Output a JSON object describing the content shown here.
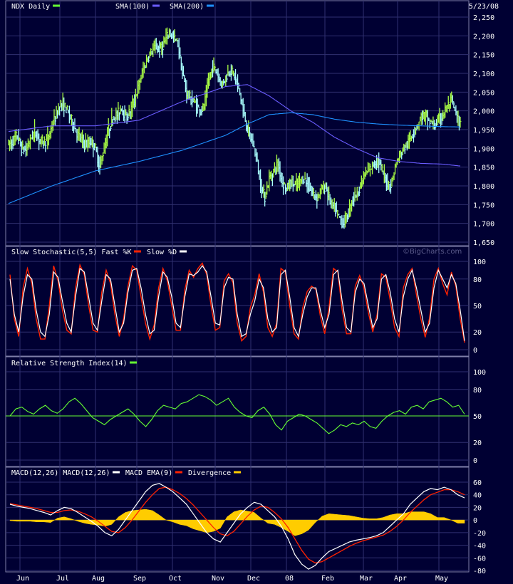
{
  "chart_data": [
    {
      "type": "candlestick",
      "title": "NDX Daily",
      "date": "5/23/08",
      "legend": [
        {
          "name": "NDX Daily",
          "color": "#66ff33"
        },
        {
          "name": "SMA(100)",
          "color": "#6a5cff"
        },
        {
          "name": "SMA(200)",
          "color": "#1e90ff"
        }
      ],
      "ylim": [
        1650,
        2250
      ],
      "yticks": [
        "2,250",
        "2,200",
        "2,150",
        "2,100",
        "2,050",
        "2,000",
        "1,950",
        "1,900",
        "1,850",
        "1,800",
        "1,750",
        "1,700",
        "1,650"
      ],
      "ytick_values": [
        2250,
        2200,
        2150,
        2100,
        2050,
        2000,
        1950,
        1900,
        1850,
        1800,
        1750,
        1700,
        1650
      ],
      "price_keypoints": [
        [
          0,
          1910
        ],
        [
          4,
          1920
        ],
        [
          8,
          1935
        ],
        [
          12,
          1900
        ],
        [
          16,
          1895
        ],
        [
          20,
          1925
        ],
        [
          24,
          1945
        ],
        [
          28,
          1925
        ],
        [
          32,
          1915
        ],
        [
          36,
          1925
        ],
        [
          40,
          1960
        ],
        [
          44,
          1990
        ],
        [
          48,
          2020
        ],
        [
          52,
          2010
        ],
        [
          56,
          1990
        ],
        [
          60,
          1960
        ],
        [
          64,
          1935
        ],
        [
          68,
          1920
        ],
        [
          72,
          1910
        ],
        [
          76,
          1920
        ],
        [
          80,
          1900
        ],
        [
          84,
          1850
        ],
        [
          88,
          1900
        ],
        [
          92,
          1950
        ],
        [
          96,
          1980
        ],
        [
          100,
          1990
        ],
        [
          104,
          2010
        ],
        [
          108,
          1980
        ],
        [
          112,
          2000
        ],
        [
          116,
          2030
        ],
        [
          120,
          2070
        ],
        [
          124,
          2110
        ],
        [
          128,
          2140
        ],
        [
          132,
          2160
        ],
        [
          136,
          2170
        ],
        [
          140,
          2165
        ],
        [
          144,
          2185
        ],
        [
          148,
          2210
        ],
        [
          152,
          2195
        ],
        [
          156,
          2180
        ],
        [
          160,
          2100
        ],
        [
          164,
          2050
        ],
        [
          168,
          2030
        ],
        [
          172,
          2020
        ],
        [
          176,
          2000
        ],
        [
          180,
          2010
        ],
        [
          184,
          2080
        ],
        [
          188,
          2120
        ],
        [
          192,
          2100
        ],
        [
          196,
          2070
        ],
        [
          200,
          2090
        ],
        [
          204,
          2110
        ],
        [
          208,
          2095
        ],
        [
          212,
          2060
        ],
        [
          216,
          2000
        ],
        [
          220,
          1950
        ],
        [
          224,
          1920
        ],
        [
          228,
          1880
        ],
        [
          232,
          1800
        ],
        [
          236,
          1770
        ],
        [
          240,
          1820
        ],
        [
          244,
          1840
        ],
        [
          248,
          1860
        ],
        [
          252,
          1810
        ],
        [
          256,
          1790
        ],
        [
          260,
          1810
        ],
        [
          264,
          1800
        ],
        [
          268,
          1810
        ],
        [
          272,
          1820
        ],
        [
          276,
          1800
        ],
        [
          280,
          1780
        ],
        [
          284,
          1770
        ],
        [
          288,
          1790
        ],
        [
          292,
          1800
        ],
        [
          296,
          1760
        ],
        [
          300,
          1740
        ],
        [
          304,
          1720
        ],
        [
          308,
          1700
        ],
        [
          312,
          1720
        ],
        [
          316,
          1760
        ],
        [
          320,
          1780
        ],
        [
          324,
          1800
        ],
        [
          328,
          1830
        ],
        [
          332,
          1840
        ],
        [
          336,
          1860
        ],
        [
          340,
          1870
        ],
        [
          344,
          1840
        ],
        [
          348,
          1810
        ],
        [
          352,
          1800
        ],
        [
          356,
          1850
        ],
        [
          360,
          1880
        ],
        [
          364,
          1900
        ],
        [
          368,
          1915
        ],
        [
          372,
          1940
        ],
        [
          376,
          1960
        ],
        [
          380,
          1985
        ],
        [
          384,
          1990
        ],
        [
          388,
          1970
        ],
        [
          392,
          1960
        ],
        [
          396,
          1975
        ],
        [
          400,
          1990
        ],
        [
          404,
          2010
        ],
        [
          408,
          2030
        ],
        [
          412,
          1990
        ],
        [
          416,
          1960
        ]
      ],
      "sma100_keypoints": [
        [
          0,
          1945
        ],
        [
          40,
          1960
        ],
        [
          80,
          1960
        ],
        [
          120,
          1975
        ],
        [
          160,
          2025
        ],
        [
          200,
          2065
        ],
        [
          220,
          2070
        ],
        [
          240,
          2040
        ],
        [
          260,
          2000
        ],
        [
          280,
          1970
        ],
        [
          300,
          1930
        ],
        [
          320,
          1900
        ],
        [
          340,
          1875
        ],
        [
          360,
          1865
        ],
        [
          380,
          1860
        ],
        [
          400,
          1858
        ],
        [
          416,
          1853
        ]
      ],
      "sma200_keypoints": [
        [
          0,
          1753
        ],
        [
          40,
          1800
        ],
        [
          80,
          1840
        ],
        [
          120,
          1865
        ],
        [
          160,
          1895
        ],
        [
          200,
          1935
        ],
        [
          220,
          1965
        ],
        [
          240,
          1990
        ],
        [
          260,
          1995
        ],
        [
          280,
          1990
        ],
        [
          300,
          1978
        ],
        [
          320,
          1970
        ],
        [
          340,
          1965
        ],
        [
          360,
          1962
        ],
        [
          380,
          1960
        ],
        [
          400,
          1958
        ],
        [
          416,
          1957
        ]
      ]
    },
    {
      "type": "line",
      "title": "Slow Stochastic(5,5)",
      "legend": [
        {
          "name": "Fast %K",
          "color": "#ff2200"
        },
        {
          "name": "Slow %D",
          "color": "#ffffff"
        }
      ],
      "ylim": [
        0,
        100
      ],
      "yticks": [
        "100",
        "80",
        "50",
        "20",
        "0"
      ],
      "ytick_values": [
        100,
        80,
        50,
        20,
        0
      ],
      "slow_d": [
        80,
        40,
        20,
        60,
        85,
        80,
        45,
        20,
        15,
        40,
        88,
        82,
        55,
        30,
        20,
        60,
        92,
        88,
        60,
        30,
        22,
        55,
        85,
        80,
        50,
        20,
        30,
        65,
        90,
        92,
        70,
        40,
        18,
        22,
        60,
        88,
        82,
        60,
        30,
        25,
        60,
        86,
        84,
        88,
        95,
        88,
        60,
        30,
        28,
        70,
        82,
        80,
        40,
        15,
        18,
        40,
        55,
        80,
        70,
        35,
        20,
        25,
        85,
        90,
        60,
        25,
        15,
        40,
        60,
        70,
        70,
        45,
        25,
        40,
        85,
        90,
        55,
        25,
        20,
        65,
        80,
        75,
        50,
        25,
        35,
        80,
        85,
        65,
        35,
        20,
        60,
        80,
        90,
        70,
        45,
        20,
        30,
        70,
        90,
        80,
        70,
        85,
        75,
        45,
        10
      ],
      "fast_k": [
        85,
        35,
        15,
        70,
        92,
        75,
        35,
        12,
        12,
        50,
        95,
        78,
        45,
        22,
        18,
        70,
        96,
        85,
        50,
        22,
        20,
        65,
        90,
        75,
        40,
        15,
        35,
        72,
        95,
        90,
        60,
        30,
        12,
        28,
        70,
        92,
        78,
        50,
        22,
        22,
        68,
        90,
        82,
        92,
        98,
        85,
        50,
        22,
        25,
        78,
        86,
        76,
        30,
        10,
        15,
        48,
        62,
        86,
        65,
        25,
        15,
        30,
        92,
        88,
        50,
        18,
        12,
        48,
        66,
        72,
        68,
        38,
        18,
        48,
        92,
        88,
        45,
        18,
        18,
        72,
        84,
        70,
        42,
        20,
        40,
        86,
        82,
        56,
        25,
        15,
        70,
        85,
        92,
        62,
        35,
        14,
        36,
        80,
        92,
        75,
        62,
        88,
        72,
        35,
        8
      ]
    },
    {
      "type": "line",
      "title": "Relative Strength Index(14)",
      "legend": [
        {
          "name": "Relative Strength Index(14)",
          "color": "#66ff33"
        }
      ],
      "ylim": [
        0,
        100
      ],
      "yticks": [
        "100",
        "80",
        "50",
        "20",
        "0"
      ],
      "ytick_values": [
        100,
        80,
        50,
        20,
        0
      ],
      "reference_line": 50,
      "rsi": [
        50,
        58,
        60,
        55,
        52,
        58,
        62,
        56,
        53,
        58,
        66,
        70,
        64,
        56,
        48,
        44,
        40,
        46,
        50,
        54,
        58,
        52,
        44,
        38,
        46,
        56,
        62,
        60,
        58,
        64,
        66,
        70,
        74,
        72,
        68,
        62,
        66,
        70,
        60,
        54,
        50,
        48,
        56,
        60,
        52,
        40,
        34,
        44,
        48,
        52,
        50,
        46,
        42,
        36,
        30,
        34,
        40,
        38,
        42,
        40,
        44,
        38,
        36,
        44,
        50,
        54,
        56,
        52,
        60,
        62,
        58,
        66,
        68,
        70,
        66,
        60,
        62,
        52
      ]
    },
    {
      "type": "line",
      "title": "MACD(12,26)",
      "legend": [
        {
          "name": "MACD(12,26)",
          "color": "#ffffff"
        },
        {
          "name": "MACD EMA(9)",
          "color": "#ff2200"
        },
        {
          "name": "Divergence",
          "color": "#ffcc00"
        }
      ],
      "ylim": [
        -80,
        60
      ],
      "yticks": [
        "60",
        "40",
        "20",
        "0",
        "-20",
        "-40",
        "-60",
        "-80"
      ],
      "ytick_values": [
        60,
        40,
        20,
        0,
        -20,
        -40,
        -60,
        -80
      ],
      "macd": [
        25,
        22,
        20,
        18,
        15,
        12,
        8,
        15,
        20,
        18,
        12,
        5,
        -2,
        -10,
        -20,
        -25,
        -15,
        0,
        15,
        30,
        45,
        55,
        58,
        52,
        45,
        35,
        25,
        10,
        -5,
        -20,
        -30,
        -35,
        -20,
        -5,
        10,
        20,
        28,
        25,
        15,
        5,
        -10,
        -30,
        -55,
        -70,
        -78,
        -72,
        -60,
        -50,
        -45,
        -40,
        -35,
        -32,
        -30,
        -28,
        -25,
        -20,
        -10,
        0,
        10,
        25,
        35,
        45,
        50,
        48,
        52,
        48,
        40,
        35
      ],
      "signal": [
        26,
        24,
        22,
        20,
        18,
        15,
        12,
        12,
        15,
        16,
        14,
        10,
        5,
        -2,
        -10,
        -18,
        -20,
        -12,
        0,
        14,
        28,
        40,
        50,
        52,
        48,
        42,
        34,
        24,
        12,
        0,
        -12,
        -22,
        -25,
        -18,
        -6,
        6,
        16,
        22,
        20,
        12,
        2,
        -12,
        -30,
        -48,
        -62,
        -68,
        -66,
        -60,
        -54,
        -48,
        -42,
        -37,
        -33,
        -30,
        -27,
        -24,
        -18,
        -10,
        0,
        12,
        22,
        32,
        40,
        44,
        48,
        48,
        45,
        40
      ]
    },
    {
      "type": "axis",
      "xlabels": [
        "Jun",
        "Jul",
        "Aug",
        "Sep",
        "Oct",
        "Nov",
        "Dec",
        "08",
        "Feb",
        "Mar",
        "Apr",
        "May"
      ]
    }
  ],
  "watermark": "©BigCharts.com"
}
